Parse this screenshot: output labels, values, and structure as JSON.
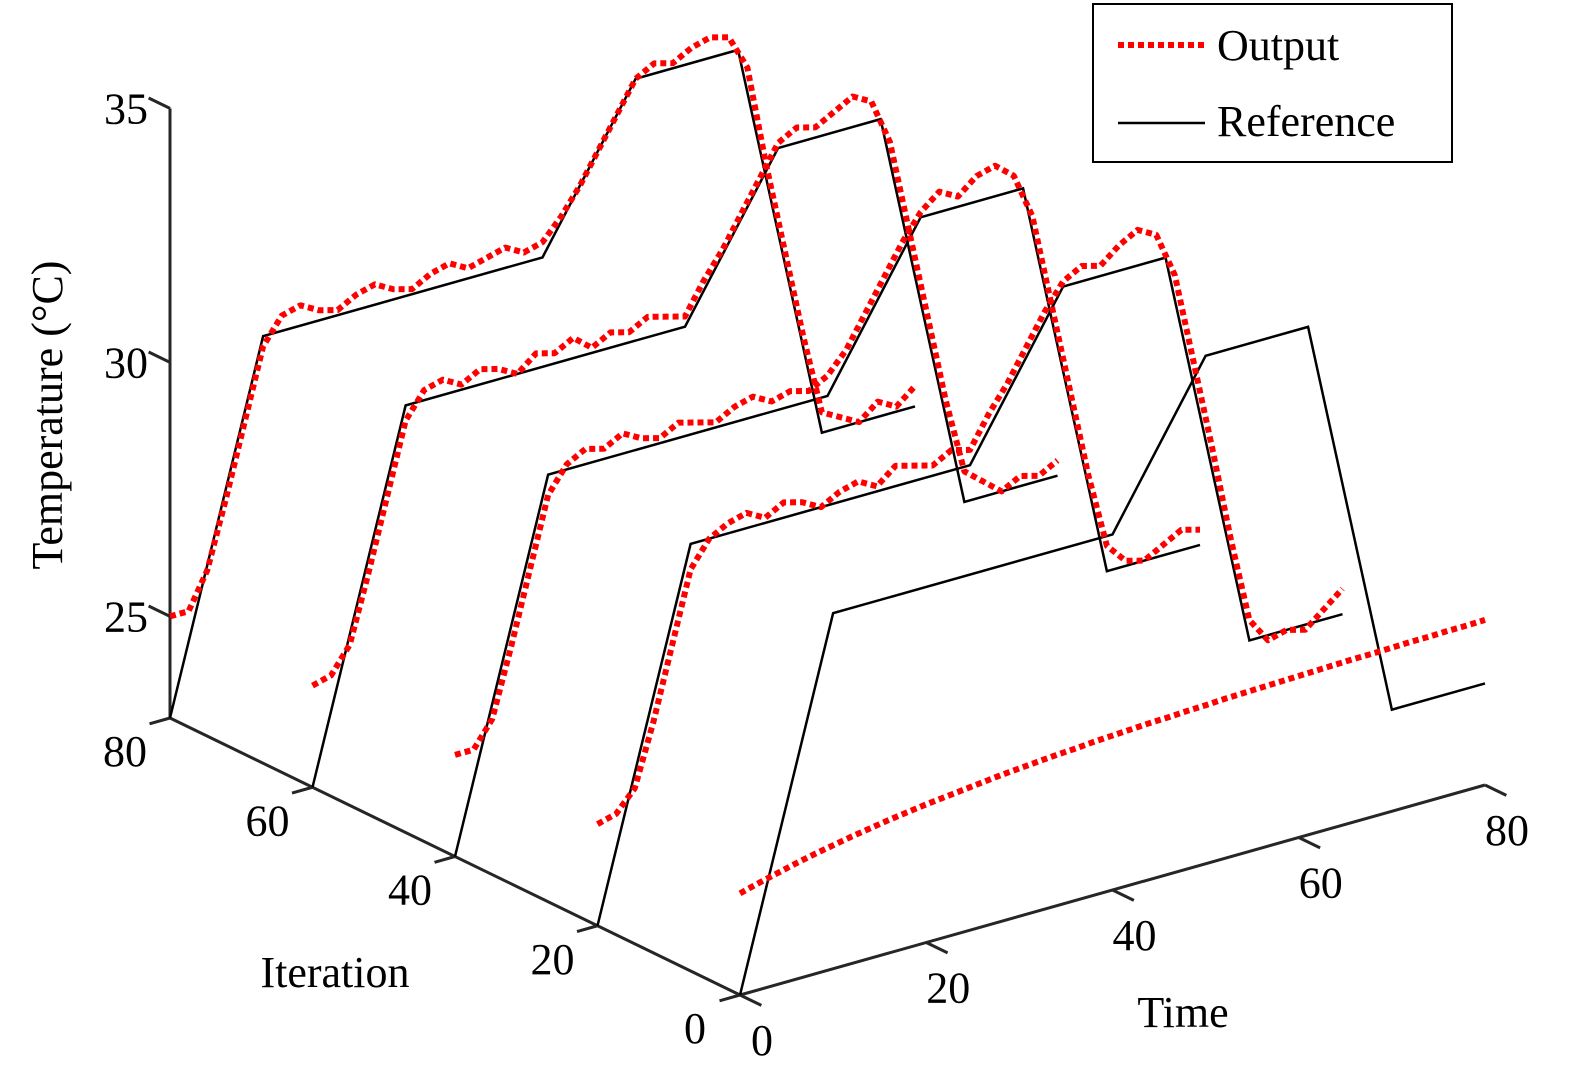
{
  "chart_data": {
    "type": "line",
    "projection": "3d",
    "xlabel": "Time",
    "ylabel": "Iteration",
    "zlabel": "Temperature (°C)",
    "xlim": [
      0,
      80
    ],
    "ylim": [
      0,
      80
    ],
    "zlim": [
      23,
      35
    ],
    "x_ticks": [
      0,
      20,
      40,
      60,
      80
    ],
    "y_ticks": [
      0,
      20,
      40,
      60,
      80
    ],
    "z_ticks": [
      25,
      30,
      35
    ],
    "grid": false,
    "legend": {
      "position": "top-right",
      "entries": [
        {
          "label": "Output",
          "style": "dotted",
          "color": "#ff0000"
        },
        {
          "label": "Reference",
          "style": "solid",
          "color": "#000000"
        }
      ]
    },
    "reference": {
      "time": [
        0,
        10,
        40,
        50,
        61,
        70,
        80
      ],
      "temperature": [
        23,
        30,
        30,
        33,
        33,
        25,
        25
      ]
    },
    "reference_iterations": [
      80,
      60,
      40,
      20,
      0
    ],
    "output_time": [
      0,
      2,
      4,
      6,
      8,
      10,
      12,
      14,
      16,
      18,
      20,
      22,
      24,
      26,
      28,
      30,
      32,
      34,
      36,
      38,
      40,
      42,
      44,
      46,
      48,
      50,
      52,
      54,
      56,
      58,
      60,
      62,
      64,
      66,
      68,
      70,
      72,
      74,
      76,
      78,
      80
    ],
    "output_series": [
      {
        "iteration": 80,
        "temperature": [
          25.0,
          25.0,
          25.7,
          27.0,
          28.4,
          29.8,
          30.3,
          30.4,
          30.2,
          30.1,
          30.3,
          30.4,
          30.2,
          30.1,
          30.3,
          30.4,
          30.2,
          30.3,
          30.4,
          30.2,
          30.3,
          30.7,
          31.2,
          31.8,
          32.4,
          33.0,
          33.2,
          33.1,
          33.3,
          33.4,
          33.3,
          32.6,
          30.6,
          28.8,
          27.0,
          25.4,
          25.2,
          25.0,
          25.3,
          25.1,
          25.4
        ]
      },
      {
        "iteration": 60,
        "temperature": [
          25.0,
          25.1,
          25.6,
          26.9,
          28.3,
          29.7,
          30.2,
          30.3,
          30.1,
          30.3,
          30.2,
          30.0,
          30.3,
          30.2,
          30.4,
          30.1,
          30.3,
          30.2,
          30.4,
          30.3,
          30.2,
          30.8,
          31.3,
          31.9,
          32.5,
          33.1,
          33.3,
          33.2,
          33.4,
          33.6,
          33.4,
          32.5,
          30.7,
          28.9,
          27.1,
          25.6,
          25.3,
          25.0,
          25.2,
          25.1,
          25.3
        ]
      },
      {
        "iteration": 40,
        "temperature": [
          25.0,
          25.0,
          25.5,
          26.8,
          28.2,
          29.6,
          30.1,
          30.3,
          30.2,
          30.4,
          30.2,
          30.1,
          30.3,
          30.2,
          30.1,
          30.3,
          30.4,
          30.2,
          30.3,
          30.2,
          30.4,
          30.8,
          31.4,
          32.0,
          32.6,
          33.1,
          33.4,
          33.2,
          33.5,
          33.6,
          33.3,
          32.4,
          30.6,
          28.8,
          27.0,
          25.5,
          25.1,
          25.0,
          25.2,
          25.4,
          25.3
        ]
      },
      {
        "iteration": 20,
        "temperature": [
          25.0,
          25.1,
          25.5,
          26.7,
          28.1,
          29.5,
          30.0,
          30.2,
          30.3,
          30.1,
          30.3,
          30.2,
          30.0,
          30.2,
          30.3,
          30.1,
          30.4,
          30.3,
          30.2,
          30.4,
          30.3,
          30.9,
          31.4,
          32.0,
          32.6,
          33.1,
          33.3,
          33.2,
          33.5,
          33.7,
          33.5,
          32.6,
          30.8,
          29.0,
          27.1,
          25.4,
          24.9,
          25.0,
          24.9,
          25.2,
          25.5
        ]
      },
      {
        "iteration": 0,
        "temperature": [
          25.0,
          25.1,
          25.19,
          25.28,
          25.36,
          25.43,
          25.5,
          25.56,
          25.62,
          25.67,
          25.72,
          25.76,
          25.8,
          25.84,
          25.88,
          25.91,
          25.94,
          25.97,
          25.99,
          26.02,
          26.04,
          26.06,
          26.08,
          26.09,
          26.11,
          26.12,
          26.14,
          26.15,
          26.16,
          26.17,
          26.18,
          26.19,
          26.2,
          26.21,
          26.21,
          26.22,
          26.23,
          26.23,
          26.24,
          26.24,
          26.25
        ]
      }
    ]
  }
}
